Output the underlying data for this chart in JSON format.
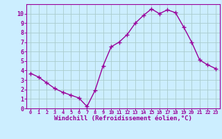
{
  "x": [
    0,
    1,
    2,
    3,
    4,
    5,
    6,
    7,
    8,
    9,
    10,
    11,
    12,
    13,
    14,
    15,
    16,
    17,
    18,
    19,
    20,
    21,
    22,
    23
  ],
  "y": [
    3.7,
    3.3,
    2.7,
    2.1,
    1.7,
    1.4,
    1.1,
    0.2,
    1.9,
    4.5,
    6.5,
    7.0,
    7.8,
    9.0,
    9.8,
    10.5,
    10.0,
    10.4,
    10.1,
    8.6,
    7.0,
    5.1,
    4.6,
    4.2
  ],
  "line_color": "#990099",
  "marker": "+",
  "marker_size": 4,
  "marker_lw": 1.0,
  "bg_color": "#cceeff",
  "grid_color": "#aacccc",
  "xlabel": "Windchill (Refroidissement éolien,°C)",
  "xlabel_color": "#990099",
  "tick_color": "#990099",
  "spine_color": "#990099",
  "ylim": [
    0,
    11
  ],
  "xlim": [
    -0.5,
    23.5
  ],
  "yticks": [
    0,
    1,
    2,
    3,
    4,
    5,
    6,
    7,
    8,
    9,
    10
  ],
  "xticks": [
    0,
    1,
    2,
    3,
    4,
    5,
    6,
    7,
    8,
    9,
    10,
    11,
    12,
    13,
    14,
    15,
    16,
    17,
    18,
    19,
    20,
    21,
    22,
    23
  ],
  "xtick_fontsize": 5,
  "ytick_fontsize": 6,
  "xlabel_fontsize": 6.5,
  "linewidth": 1.0
}
